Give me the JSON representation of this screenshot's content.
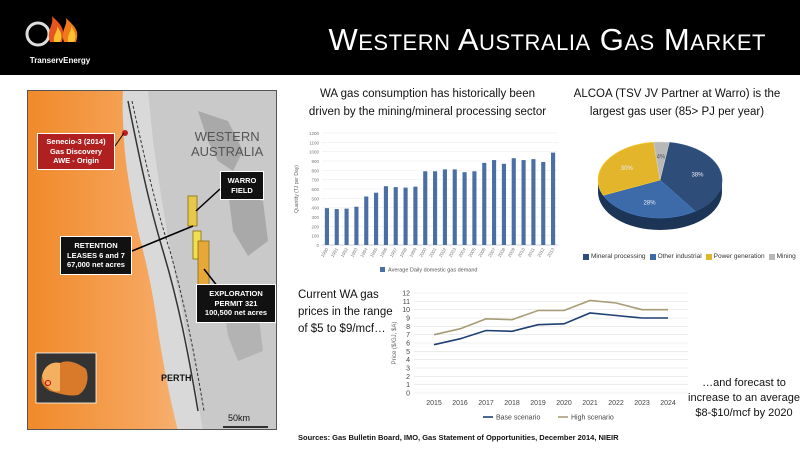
{
  "header": {
    "title": "Western Australia Gas Market",
    "logo_text": "TranservEnergy"
  },
  "map": {
    "region_label_line1": "WESTERN",
    "region_label_line2": "AUSTRALIA",
    "senecio": [
      "Senecio-3 (2014)",
      "Gas Discovery",
      "AWE - Origin"
    ],
    "warro": [
      "WARRO",
      "FIELD"
    ],
    "retention": [
      "RETENTION",
      "LEASES 6 and 7",
      "67,000 net acres"
    ],
    "exploration": [
      "EXPLORATION",
      "PERMIT 321",
      "100,500 net acres"
    ],
    "perth": "PERTH",
    "scale": "50km"
  },
  "consumption": {
    "title_line1": "WA gas consumption has historically been",
    "title_line2": "driven by the mining/mineral processing sector"
  },
  "pie": {
    "title_line1": "ALCOA (TSV JV Partner at Warro) is the",
    "title_line2": "largest gas user (85> PJ per year)"
  },
  "prices": {
    "text": "Current WA gas prices in the range of $5 to $9/mcf…",
    "forecast_text": "…and forecast to increase to an average $8-$10/mcf by 2020"
  },
  "sources": "Sources: Gas Bulletin Board, IMO, Gas Statement of Opportunities, December 2014, NIEIR",
  "chart_data": [
    {
      "type": "bar",
      "title": "",
      "ylabel": "Quantity (TJ per Day)",
      "xlabel": "",
      "ylim": [
        0,
        1200
      ],
      "yticks": [
        0,
        100,
        200,
        300,
        400,
        500,
        600,
        700,
        800,
        900,
        1000,
        1100,
        1200
      ],
      "categories": [
        "1990",
        "1991",
        "1992",
        "1993",
        "1994",
        "1995",
        "1996",
        "1997",
        "1998",
        "1999",
        "2000",
        "2001",
        "2002",
        "2003",
        "2004",
        "2005",
        "2006",
        "2007",
        "2008",
        "2009",
        "2010",
        "2011",
        "2012",
        "2013"
      ],
      "series": [
        {
          "name": "Average Daily domestic gas demand",
          "color": "#4a6fa5",
          "values": [
            395,
            385,
            390,
            410,
            520,
            560,
            630,
            620,
            615,
            625,
            790,
            790,
            810,
            810,
            780,
            790,
            880,
            910,
            870,
            930,
            910,
            920,
            890,
            990
          ]
        }
      ],
      "legend": "bottom"
    },
    {
      "type": "pie",
      "categories": [
        "Mineral processing",
        "Other industrial",
        "Power generation",
        "Mining"
      ],
      "values": [
        38,
        28,
        30,
        4
      ],
      "labels": [
        "38%",
        "28%",
        "30%",
        "4%"
      ],
      "colors": [
        "#2e4d78",
        "#3d6aa8",
        "#e2b52a",
        "#b8b8b8"
      ],
      "legend": "bottom"
    },
    {
      "type": "line",
      "ylabel": "Price ($/GJ, $A)",
      "xlabel": "",
      "ylim": [
        0,
        12
      ],
      "yticks": [
        0,
        1,
        2,
        3,
        4,
        5,
        6,
        7,
        8,
        9,
        10,
        11,
        12
      ],
      "x": [
        "2015",
        "2016",
        "2017",
        "2018",
        "2019",
        "2020",
        "2021",
        "2022",
        "2023",
        "2024"
      ],
      "series": [
        {
          "name": "Base scenario",
          "color": "#1f3f73",
          "values": [
            5.8,
            6.5,
            7.5,
            7.4,
            8.2,
            8.3,
            9.6,
            9.3,
            9.0,
            9.0
          ]
        },
        {
          "name": "High scenario",
          "color": "#a89c78",
          "values": [
            7.0,
            7.7,
            8.9,
            8.8,
            9.9,
            9.9,
            11.1,
            10.8,
            10.0,
            10.0
          ]
        }
      ],
      "legend": "bottom",
      "grid": true
    }
  ]
}
